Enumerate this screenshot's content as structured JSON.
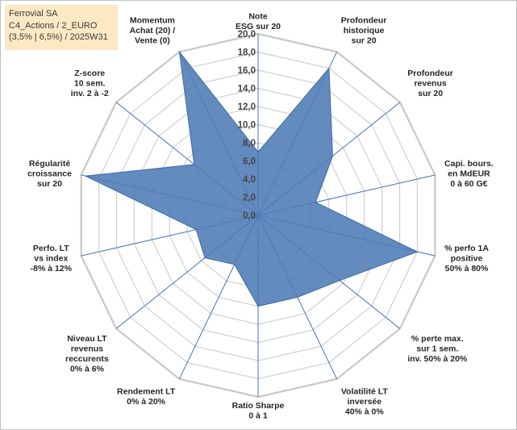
{
  "chart_data": {
    "type": "radar",
    "info_lines": [
      "Ferrovial SA",
      "C4_Actions / 2_EURO",
      "(3,5% | 6,5%) / 2025W31"
    ],
    "categories": [
      [
        "Note",
        "ESG sur 20"
      ],
      [
        "Profondeur",
        "historique",
        "sur 20"
      ],
      [
        "Profondeur",
        "revenus",
        "sur 20"
      ],
      [
        "Capi. bours.",
        "en MdEUR",
        "0 à 60 G€"
      ],
      [
        "% perfo 1A",
        "positive",
        "50% à 80%"
      ],
      [
        "% perte max.",
        "sur 1 sem.",
        "inv. 50% à 20%"
      ],
      [
        "Volatilité LT",
        "inversée",
        "40% à 0%"
      ],
      [
        "Ratio Sharpe",
        "0 à 1"
      ],
      [
        "Rendement LT",
        "0% à 20%"
      ],
      [
        "Niveau LT",
        "revenus",
        "reccurents",
        "0% à 6%"
      ],
      [
        "Perfo. LT",
        "vs index",
        "-8% à 12%"
      ],
      [
        "Régularité",
        "croissance",
        "sur 20"
      ],
      [
        "Z-score",
        "10 sem.",
        "inv. 2 à -2"
      ],
      [
        "Momentum",
        "Achat (20) /",
        "Vente (0)"
      ]
    ],
    "values": [
      7.0,
      18.0,
      10.5,
      6.5,
      18.0,
      11.5,
      10.0,
      10.0,
      6.0,
      7.5,
      7.0,
      19.5,
      9.0,
      20.0
    ],
    "ylim": [
      0,
      20
    ],
    "ticks": [
      "0,0",
      "2,0",
      "4,0",
      "6,0",
      "8,0",
      "10,0",
      "12,0",
      "14,0",
      "16,0",
      "18,0",
      "20,0"
    ],
    "colors": {
      "fill": "#4f7bb5",
      "stroke": "#3d6aa8",
      "grid": "#d0d0d0",
      "axis": "#4472c4"
    }
  }
}
